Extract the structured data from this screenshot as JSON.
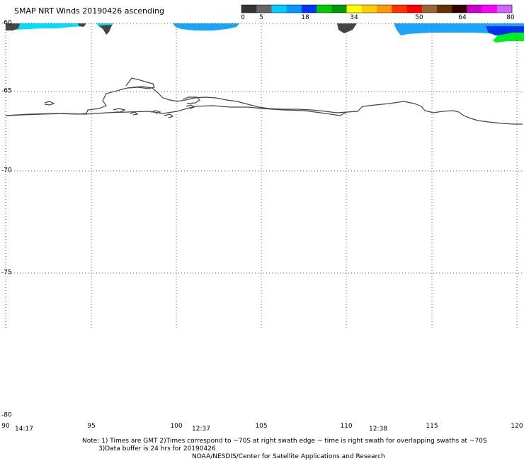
{
  "header": {
    "title": "SMAP NRT Winds 20190426 ascending"
  },
  "colorbar": {
    "ticks": [
      "0",
      "5",
      "18",
      "34",
      "50",
      "64",
      "80"
    ],
    "colors": [
      "#333333",
      "#666666",
      "#00ccff",
      "#0099ff",
      "#0033ff",
      "#00cc00",
      "#009900",
      "#ffff00",
      "#ffcc00",
      "#ff9900",
      "#ff3300",
      "#ff0000",
      "#996633",
      "#663300",
      "#330000",
      "#cc00cc",
      "#ff00ff",
      "#cc66ff"
    ]
  },
  "map": {
    "lat_labels": [
      "-60",
      "-65",
      "-70",
      "-75",
      "-80"
    ],
    "lon_labels": [
      "90",
      "95",
      "100",
      "105",
      "110",
      "115",
      "120"
    ],
    "time_labels": [
      "14:17",
      "12:37",
      "12:38"
    ],
    "lat_range": [
      -80,
      -60
    ],
    "lon_range": [
      90,
      120
    ],
    "grid": true,
    "wind_colors": {
      "cyan": "#00ddff",
      "light_blue": "#1aa3ff",
      "blue": "#0033ee",
      "green": "#00ee22",
      "gray": "#444444"
    }
  },
  "notes": {
    "line1": "Note: 1) Times are GMT 2)Times correspond to ~70S at right swath edge ~ time is right swath for overlapping swaths at ~70S",
    "line2": "3)Data buffer is 24 hrs for 20190426",
    "line3": "NOAA/NESDIS/Center for Satellite Applications and Research"
  }
}
